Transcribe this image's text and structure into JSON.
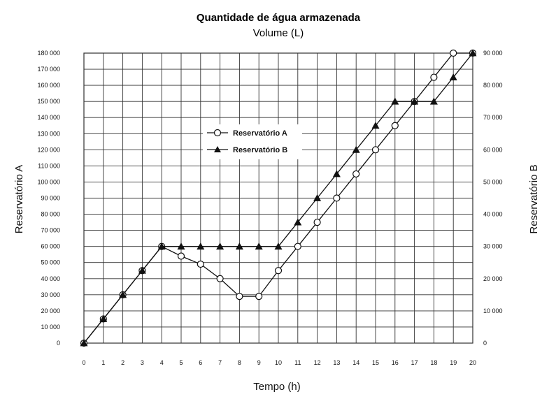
{
  "chart_data": {
    "type": "line",
    "title": "Quantidade de água armazenada",
    "subtitle": "Volume (L)",
    "xlabel": "Tempo (h)",
    "ylabel_left": "Reservatório A",
    "ylabel_right": "Reservatório B",
    "x": [
      0,
      1,
      2,
      3,
      4,
      5,
      6,
      7,
      8,
      9,
      10,
      11,
      12,
      13,
      14,
      15,
      16,
      17,
      18,
      19,
      20
    ],
    "xlim": [
      0,
      20
    ],
    "ylim_left": [
      0,
      180000
    ],
    "ylim_right": [
      0,
      90000
    ],
    "y_left_ticks": [
      "0",
      "10 000",
      "20 000",
      "30 000",
      "40 000",
      "50 000",
      "60 000",
      "70 000",
      "80 000",
      "90 000",
      "100 000",
      "110 000",
      "120 000",
      "130 000",
      "140 000",
      "150 000",
      "160 000",
      "170 000",
      "180 000"
    ],
    "y_right_ticks": [
      "0",
      "10 000",
      "20 000",
      "30 000",
      "40 000",
      "50 000",
      "60 000",
      "70 000",
      "80 000",
      "90 000"
    ],
    "x_ticks": [
      "0",
      "1",
      "2",
      "3",
      "4",
      "5",
      "6",
      "7",
      "8",
      "9",
      "10",
      "11",
      "12",
      "13",
      "14",
      "15",
      "16",
      "17",
      "18",
      "19",
      "20"
    ],
    "grid": true,
    "legend_position": "center-left",
    "series": [
      {
        "name": "Reservatório A",
        "axis": "left",
        "marker": "circle",
        "values": [
          0,
          15000,
          30000,
          45000,
          60000,
          54000,
          49000,
          40000,
          29000,
          29000,
          45000,
          60000,
          75000,
          90000,
          105000,
          120000,
          135000,
          150000,
          165000,
          180000,
          180000
        ]
      },
      {
        "name": "Reservatório B",
        "axis": "right",
        "marker": "triangle",
        "values": [
          0,
          7500,
          15000,
          22500,
          30000,
          30000,
          30000,
          30000,
          30000,
          30000,
          30000,
          37500,
          45000,
          52500,
          60000,
          67500,
          75000,
          75000,
          75000,
          82500,
          90000
        ]
      }
    ]
  }
}
